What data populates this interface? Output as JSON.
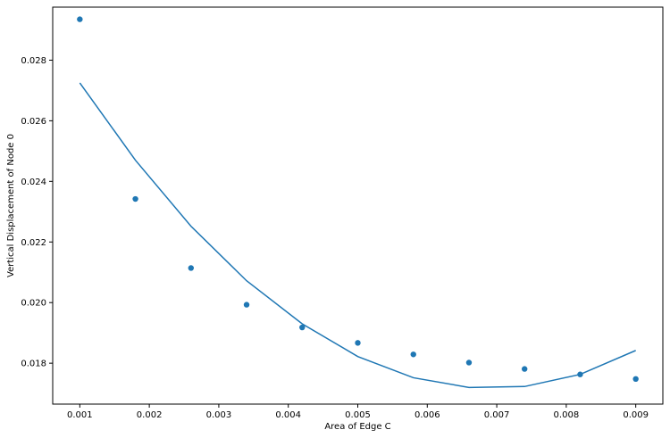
{
  "chart_data": {
    "type": "scatter",
    "title": "",
    "xlabel": "Area of Edge C",
    "ylabel": "Vertical Displacement of Node 0",
    "xlim": [
      0.00061,
      0.00939
    ],
    "ylim": [
      0.01665,
      0.02975
    ],
    "xticks": [
      "0.001",
      "0.002",
      "0.003",
      "0.004",
      "0.005",
      "0.006",
      "0.007",
      "0.008",
      "0.009"
    ],
    "yticks": [
      "0.018",
      "0.020",
      "0.022",
      "0.024",
      "0.026",
      "0.028"
    ],
    "grid": false,
    "color": "#1f77b4",
    "series": [
      {
        "kind": "scatter",
        "x": [
          0.001,
          0.0018,
          0.0026,
          0.0034,
          0.0042,
          0.005,
          0.0058,
          0.0066,
          0.0074,
          0.0082,
          0.009
        ],
        "y": [
          0.02935,
          0.02342,
          0.02114,
          0.01993,
          0.01918,
          0.01867,
          0.01829,
          0.01802,
          0.01781,
          0.01763,
          0.01748
        ]
      },
      {
        "kind": "line",
        "x": [
          0.001,
          0.0018,
          0.0026,
          0.0034,
          0.0042,
          0.005,
          0.0058,
          0.0066,
          0.0074,
          0.0082,
          0.009
        ],
        "y": [
          0.02725,
          0.0247,
          0.02252,
          0.02072,
          0.0193,
          0.01822,
          0.01752,
          0.0172,
          0.01723,
          0.01763,
          0.01842
        ]
      }
    ]
  }
}
